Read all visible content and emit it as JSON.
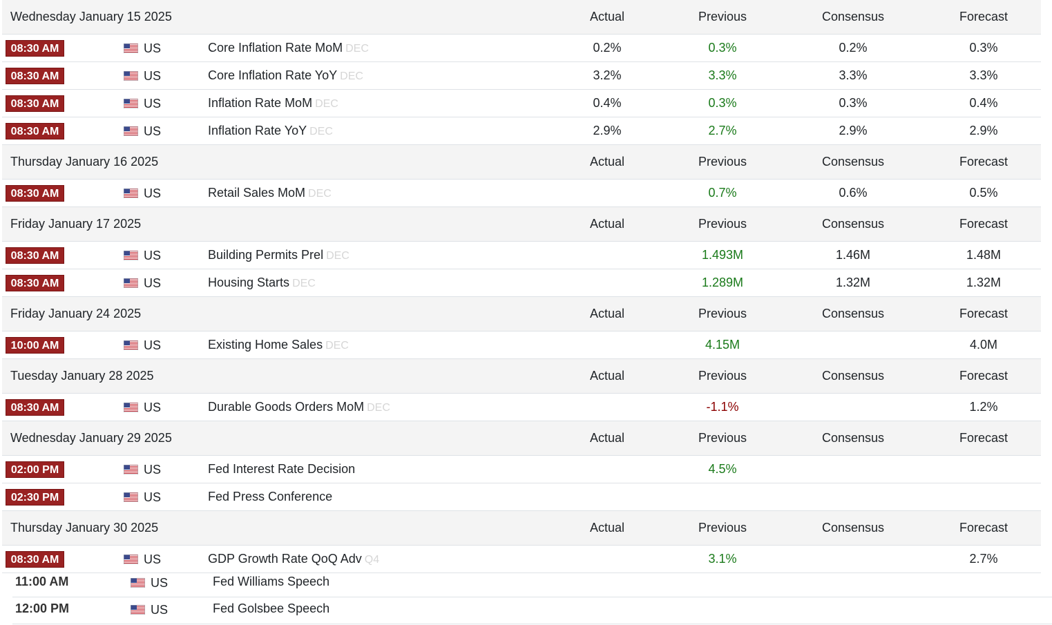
{
  "columns": {
    "actual": "Actual",
    "previous": "Previous",
    "consensus": "Consensus",
    "forecast": "Forecast"
  },
  "colors": {
    "time_badge": "#992222",
    "positive": "#1a7a1a",
    "negative": "#8b0000",
    "header_bg": "#f4f4f4"
  },
  "days": [
    {
      "date": "Wednesday January 15 2025",
      "events": [
        {
          "time": "08:30 AM",
          "country": "US",
          "name": "Core Inflation Rate MoM",
          "ref": "DEC",
          "actual": "0.2%",
          "previous": "0.3%",
          "previous_trend": "pos",
          "consensus": "0.2%",
          "forecast": "0.3%"
        },
        {
          "time": "08:30 AM",
          "country": "US",
          "name": "Core Inflation Rate YoY",
          "ref": "DEC",
          "actual": "3.2%",
          "previous": "3.3%",
          "previous_trend": "pos",
          "consensus": "3.3%",
          "forecast": "3.3%"
        },
        {
          "time": "08:30 AM",
          "country": "US",
          "name": "Inflation Rate MoM",
          "ref": "DEC",
          "actual": "0.4%",
          "previous": "0.3%",
          "previous_trend": "pos",
          "consensus": "0.3%",
          "forecast": "0.4%"
        },
        {
          "time": "08:30 AM",
          "country": "US",
          "name": "Inflation Rate YoY",
          "ref": "DEC",
          "actual": "2.9%",
          "previous": "2.7%",
          "previous_trend": "pos",
          "consensus": "2.9%",
          "forecast": "2.9%"
        }
      ]
    },
    {
      "date": "Thursday January 16 2025",
      "events": [
        {
          "time": "08:30 AM",
          "country": "US",
          "name": "Retail Sales MoM",
          "ref": "DEC",
          "actual": "",
          "previous": "0.7%",
          "previous_trend": "pos",
          "consensus": "0.6%",
          "forecast": "0.5%"
        }
      ]
    },
    {
      "date": "Friday January 17 2025",
      "events": [
        {
          "time": "08:30 AM",
          "country": "US",
          "name": "Building Permits Prel",
          "ref": "DEC",
          "actual": "",
          "previous": "1.493M",
          "previous_trend": "pos",
          "consensus": "1.46M",
          "forecast": "1.48M"
        },
        {
          "time": "08:30 AM",
          "country": "US",
          "name": "Housing Starts",
          "ref": "DEC",
          "actual": "",
          "previous": "1.289M",
          "previous_trend": "pos",
          "consensus": "1.32M",
          "forecast": "1.32M"
        }
      ]
    },
    {
      "date": "Friday January 24 2025",
      "events": [
        {
          "time": "10:00 AM",
          "country": "US",
          "name": "Existing Home Sales",
          "ref": "DEC",
          "actual": "",
          "previous": "4.15M",
          "previous_trend": "pos",
          "consensus": "",
          "forecast": "4.0M"
        }
      ]
    },
    {
      "date": "Tuesday January 28 2025",
      "events": [
        {
          "time": "08:30 AM",
          "country": "US",
          "name": "Durable Goods Orders MoM",
          "ref": "DEC",
          "actual": "",
          "previous": "-1.1%",
          "previous_trend": "neg",
          "consensus": "",
          "forecast": "1.2%"
        }
      ]
    },
    {
      "date": "Wednesday January 29 2025",
      "events": [
        {
          "time": "02:00 PM",
          "country": "US",
          "name": "Fed Interest Rate Decision",
          "ref": "",
          "actual": "",
          "previous": "4.5%",
          "previous_trend": "pos",
          "consensus": "",
          "forecast": ""
        },
        {
          "time": "02:30 PM",
          "country": "US",
          "name": "Fed Press Conference",
          "ref": "",
          "actual": "",
          "previous": "",
          "previous_trend": "pos",
          "consensus": "",
          "forecast": ""
        }
      ]
    },
    {
      "date": "Thursday January 30 2025",
      "events": [
        {
          "time": "08:30 AM",
          "country": "US",
          "name": "GDP Growth Rate QoQ Adv",
          "ref": "Q4",
          "actual": "",
          "previous": "3.1%",
          "previous_trend": "pos",
          "consensus": "",
          "forecast": "2.7%"
        }
      ]
    }
  ],
  "extra_events": [
    {
      "time": "11:00 AM",
      "country": "US",
      "name": "Fed Williams Speech"
    },
    {
      "time": "12:00 PM",
      "country": "US",
      "name": "Fed Golsbee Speech"
    }
  ]
}
